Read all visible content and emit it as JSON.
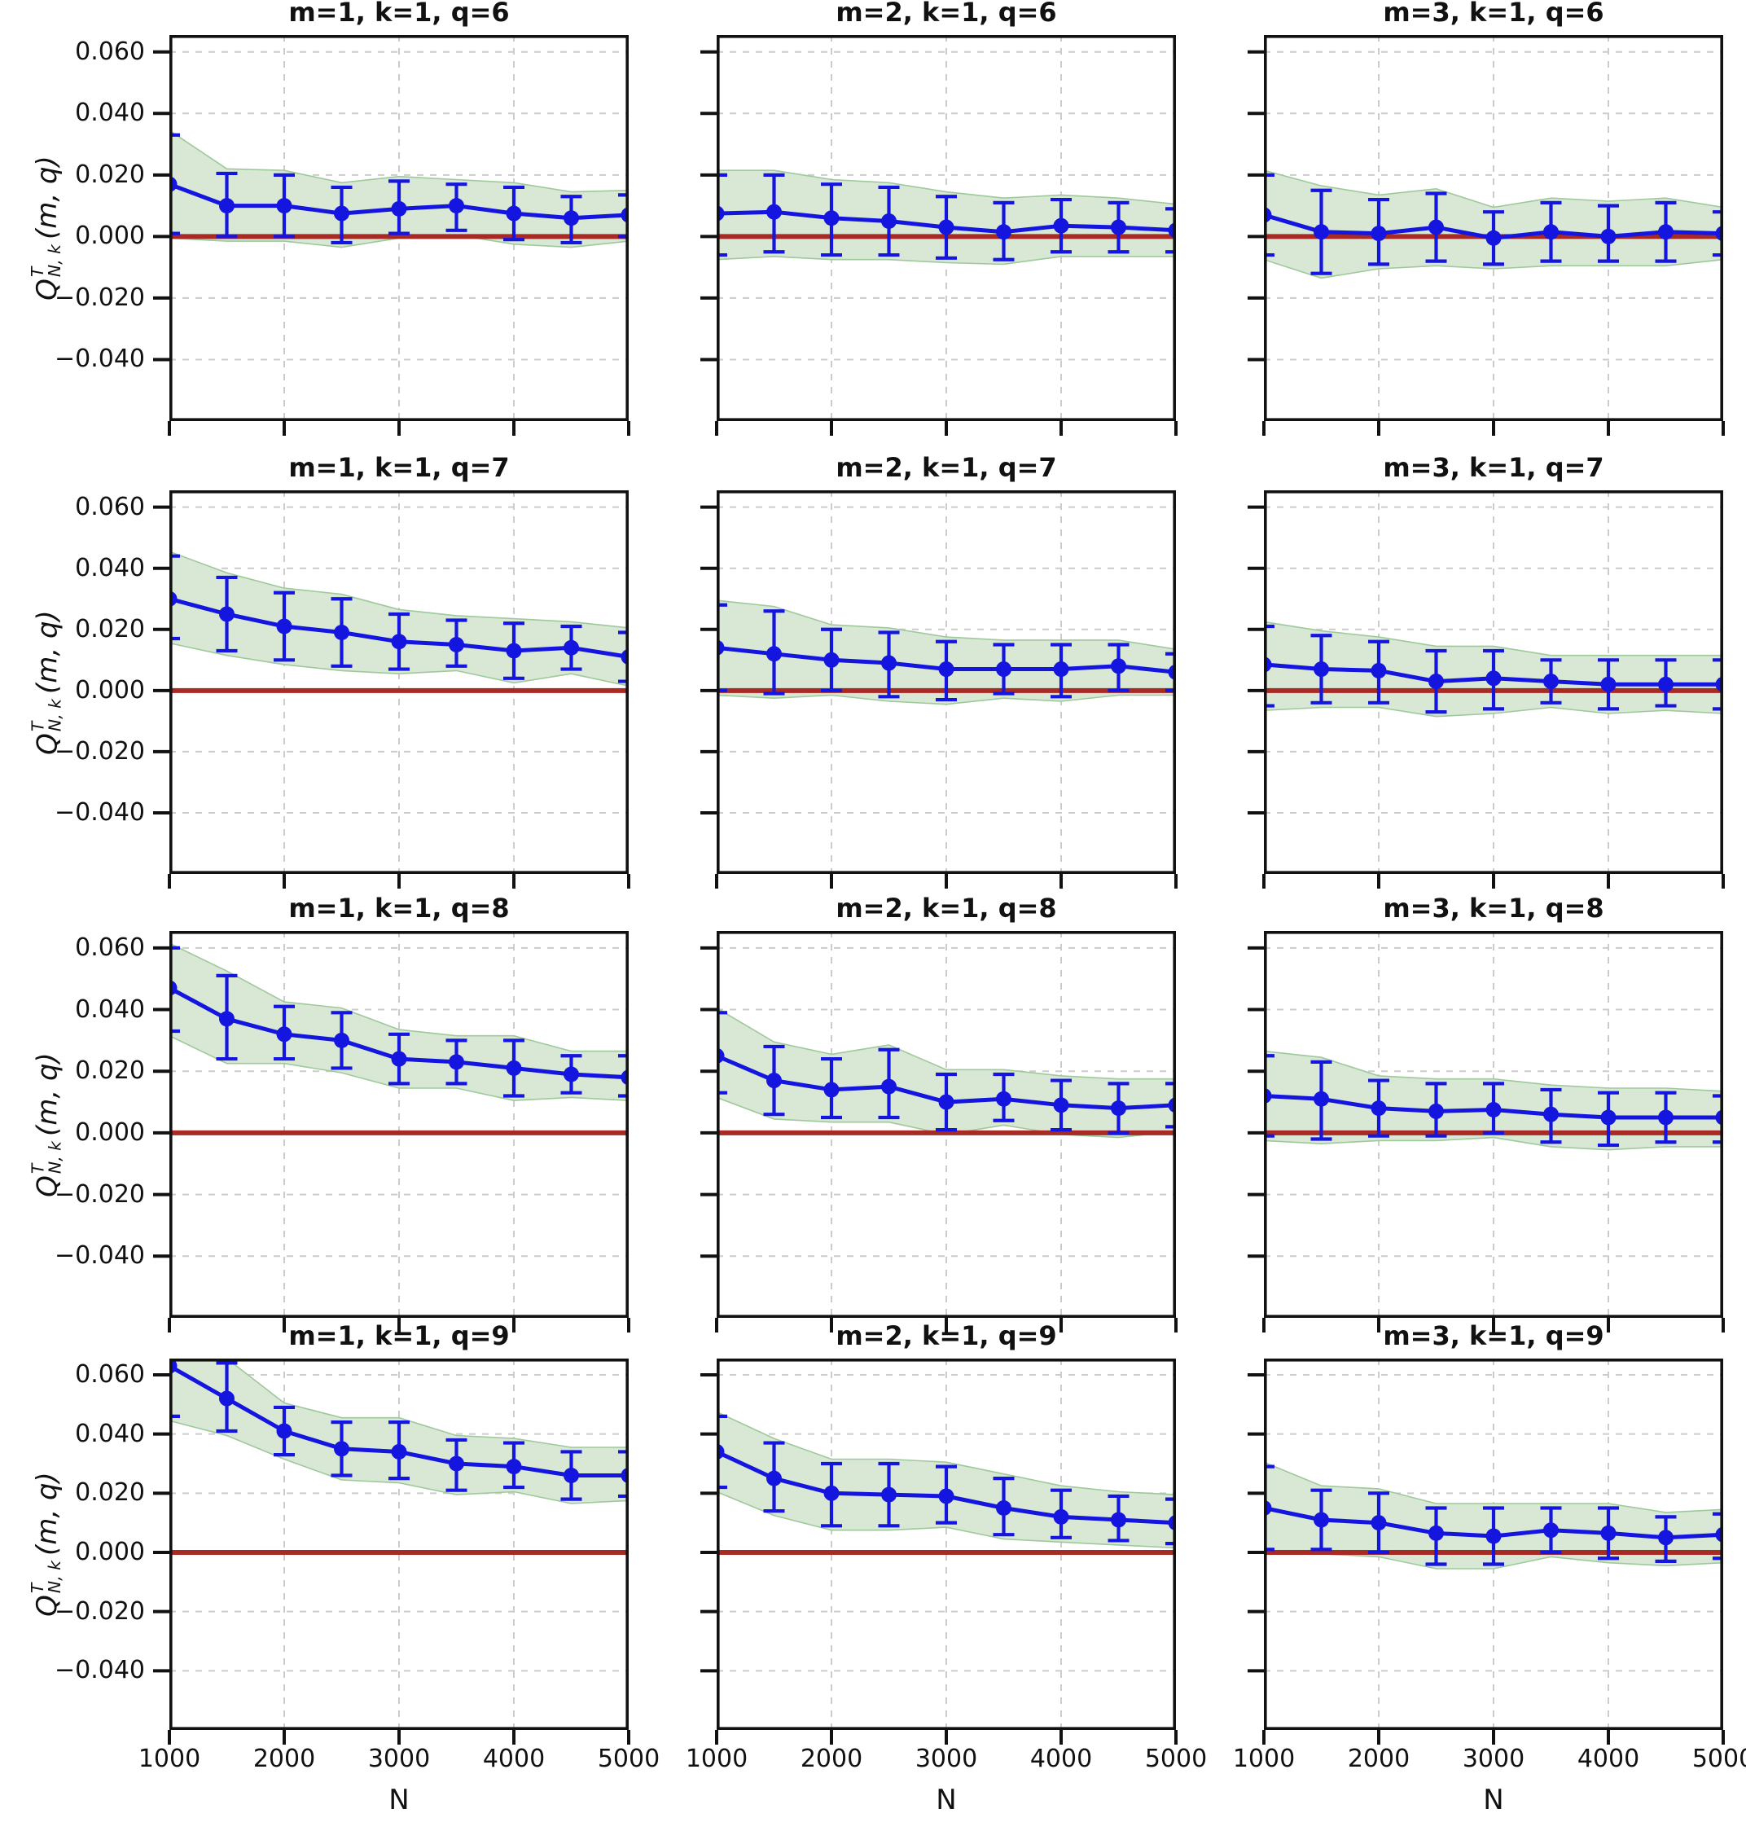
{
  "figure": {
    "xlabel": "N",
    "ylabel": {
      "base": "Q",
      "sup": "T",
      "sub": "N, k",
      "args": "(m, q)"
    },
    "colors": {
      "series_line": "#1515e0",
      "marker": "#1515e0",
      "band_fill": "#d8e8d4",
      "band_edge": "#9ec99b",
      "zero_line": "#a82a24",
      "grid": "#cccccc",
      "spine": "#111111",
      "text": "#111111",
      "background": "#ffffff"
    },
    "x_tick_labels": [
      "1000",
      "2000",
      "3000",
      "4000",
      "5000"
    ],
    "y_tick_labels": [
      "0.060",
      "0.040",
      "0.020",
      "0.000",
      "−0.020",
      "−0.040"
    ]
  },
  "chart_data": {
    "type": "line",
    "x": [
      1000,
      1500,
      2000,
      2500,
      3000,
      3500,
      4000,
      4500,
      5000
    ],
    "xlim": [
      1000,
      5000
    ],
    "ylim": [
      -0.06,
      0.0655
    ],
    "x_ticks": [
      1000,
      2000,
      3000,
      4000,
      5000
    ],
    "y_ticks": [
      0.06,
      0.04,
      0.02,
      0.0,
      -0.02,
      -0.04
    ],
    "grid_x": [
      2000,
      3000,
      4000
    ],
    "grid_on": true,
    "zero_line_y": 0.0,
    "band_delta": 0.0015,
    "legend": "none",
    "panels": [
      {
        "row": 0,
        "col": 0,
        "m": 1,
        "k": 1,
        "q": 6,
        "title": "m=1, k=1, q=6",
        "y": [
          0.017,
          0.01,
          0.01,
          0.0075,
          0.009,
          0.01,
          0.0075,
          0.006,
          0.007
        ],
        "err_low": [
          0.001,
          0.0,
          0.0,
          -0.002,
          0.001,
          0.002,
          -0.001,
          -0.002,
          0.0
        ],
        "err_high": [
          0.033,
          0.0205,
          0.02,
          0.016,
          0.018,
          0.017,
          0.016,
          0.013,
          0.0135
        ]
      },
      {
        "row": 0,
        "col": 1,
        "m": 2,
        "k": 1,
        "q": 6,
        "title": "m=2, k=1, q=6",
        "y": [
          0.0075,
          0.008,
          0.006,
          0.005,
          0.003,
          0.0015,
          0.0035,
          0.003,
          0.002
        ],
        "err_low": [
          -0.006,
          -0.005,
          -0.006,
          -0.006,
          -0.007,
          -0.0075,
          -0.005,
          -0.005,
          -0.005
        ],
        "err_high": [
          0.02,
          0.02,
          0.017,
          0.016,
          0.013,
          0.011,
          0.012,
          0.011,
          0.009
        ]
      },
      {
        "row": 0,
        "col": 2,
        "m": 3,
        "k": 1,
        "q": 6,
        "title": "m=3, k=1, q=6",
        "y": [
          0.007,
          0.0015,
          0.001,
          0.003,
          -0.0005,
          0.0015,
          0.0,
          0.0015,
          0.001
        ],
        "err_low": [
          -0.006,
          -0.012,
          -0.009,
          -0.008,
          -0.009,
          -0.008,
          -0.008,
          -0.008,
          -0.006
        ],
        "err_high": [
          0.02,
          0.015,
          0.012,
          0.014,
          0.008,
          0.011,
          0.01,
          0.011,
          0.008
        ]
      },
      {
        "row": 1,
        "col": 0,
        "m": 1,
        "k": 1,
        "q": 7,
        "title": "m=1, k=1, q=7",
        "y": [
          0.03,
          0.025,
          0.021,
          0.019,
          0.016,
          0.015,
          0.013,
          0.014,
          0.011
        ],
        "err_low": [
          0.017,
          0.013,
          0.01,
          0.008,
          0.007,
          0.008,
          0.004,
          0.007,
          0.003
        ],
        "err_high": [
          0.044,
          0.037,
          0.032,
          0.03,
          0.025,
          0.023,
          0.022,
          0.021,
          0.019
        ]
      },
      {
        "row": 1,
        "col": 1,
        "m": 2,
        "k": 1,
        "q": 7,
        "title": "m=2, k=1, q=7",
        "y": [
          0.014,
          0.012,
          0.01,
          0.009,
          0.007,
          0.007,
          0.007,
          0.008,
          0.006
        ],
        "err_low": [
          0.0,
          -0.001,
          0.0,
          -0.002,
          -0.003,
          -0.001,
          -0.002,
          0.0,
          0.0
        ],
        "err_high": [
          0.028,
          0.026,
          0.02,
          0.019,
          0.016,
          0.015,
          0.015,
          0.015,
          0.012
        ]
      },
      {
        "row": 1,
        "col": 2,
        "m": 3,
        "k": 1,
        "q": 7,
        "title": "m=3, k=1, q=7",
        "y": [
          0.0085,
          0.007,
          0.0065,
          0.003,
          0.004,
          0.003,
          0.002,
          0.002,
          0.002
        ],
        "err_low": [
          -0.005,
          -0.004,
          -0.004,
          -0.007,
          -0.006,
          -0.004,
          -0.006,
          -0.005,
          -0.006
        ],
        "err_high": [
          0.021,
          0.018,
          0.016,
          0.013,
          0.013,
          0.01,
          0.01,
          0.01,
          0.01
        ]
      },
      {
        "row": 2,
        "col": 0,
        "m": 1,
        "k": 1,
        "q": 8,
        "title": "m=1, k=1, q=8",
        "y": [
          0.047,
          0.037,
          0.032,
          0.03,
          0.024,
          0.023,
          0.021,
          0.019,
          0.018
        ],
        "err_low": [
          0.033,
          0.024,
          0.024,
          0.021,
          0.016,
          0.016,
          0.012,
          0.013,
          0.012
        ],
        "err_high": [
          0.06,
          0.051,
          0.041,
          0.039,
          0.032,
          0.03,
          0.03,
          0.025,
          0.025
        ]
      },
      {
        "row": 2,
        "col": 1,
        "m": 2,
        "k": 1,
        "q": 8,
        "title": "m=2, k=1, q=8",
        "y": [
          0.025,
          0.017,
          0.014,
          0.015,
          0.01,
          0.011,
          0.009,
          0.008,
          0.009
        ],
        "err_low": [
          0.013,
          0.006,
          0.005,
          0.005,
          0.001,
          0.004,
          0.001,
          0.0,
          0.002
        ],
        "err_high": [
          0.039,
          0.028,
          0.024,
          0.027,
          0.019,
          0.019,
          0.017,
          0.016,
          0.016
        ]
      },
      {
        "row": 2,
        "col": 2,
        "m": 3,
        "k": 1,
        "q": 8,
        "title": "m=3, k=1, q=8",
        "y": [
          0.012,
          0.011,
          0.008,
          0.007,
          0.0075,
          0.006,
          0.005,
          0.005,
          0.005
        ],
        "err_low": [
          -0.001,
          -0.002,
          -0.001,
          -0.001,
          0.0,
          -0.003,
          -0.004,
          -0.003,
          -0.003
        ],
        "err_high": [
          0.025,
          0.023,
          0.017,
          0.016,
          0.016,
          0.014,
          0.013,
          0.013,
          0.012
        ]
      },
      {
        "row": 3,
        "col": 0,
        "m": 1,
        "k": 1,
        "q": 9,
        "title": "m=1, k=1, q=9",
        "y": [
          0.063,
          0.052,
          0.041,
          0.035,
          0.034,
          0.03,
          0.029,
          0.026,
          0.026
        ],
        "err_low": [
          0.046,
          0.041,
          0.033,
          0.026,
          0.025,
          0.021,
          0.022,
          0.018,
          0.019
        ],
        "err_high": [
          0.08,
          0.064,
          0.049,
          0.044,
          0.044,
          0.038,
          0.037,
          0.034,
          0.034
        ]
      },
      {
        "row": 3,
        "col": 1,
        "m": 2,
        "k": 1,
        "q": 9,
        "title": "m=2, k=1, q=9",
        "y": [
          0.034,
          0.025,
          0.02,
          0.0195,
          0.019,
          0.015,
          0.012,
          0.011,
          0.01
        ],
        "err_low": [
          0.022,
          0.014,
          0.009,
          0.009,
          0.01,
          0.006,
          0.005,
          0.004,
          0.003
        ],
        "err_high": [
          0.046,
          0.037,
          0.03,
          0.03,
          0.029,
          0.025,
          0.021,
          0.019,
          0.018
        ]
      },
      {
        "row": 3,
        "col": 2,
        "m": 3,
        "k": 1,
        "q": 9,
        "title": "m=3, k=1, q=9",
        "y": [
          0.015,
          0.011,
          0.01,
          0.0065,
          0.0055,
          0.0075,
          0.0065,
          0.005,
          0.006
        ],
        "err_low": [
          0.001,
          0.001,
          0.0,
          -0.004,
          -0.004,
          0.0,
          -0.002,
          -0.003,
          -0.002
        ],
        "err_high": [
          0.029,
          0.021,
          0.02,
          0.015,
          0.015,
          0.015,
          0.015,
          0.012,
          0.013
        ]
      }
    ]
  }
}
